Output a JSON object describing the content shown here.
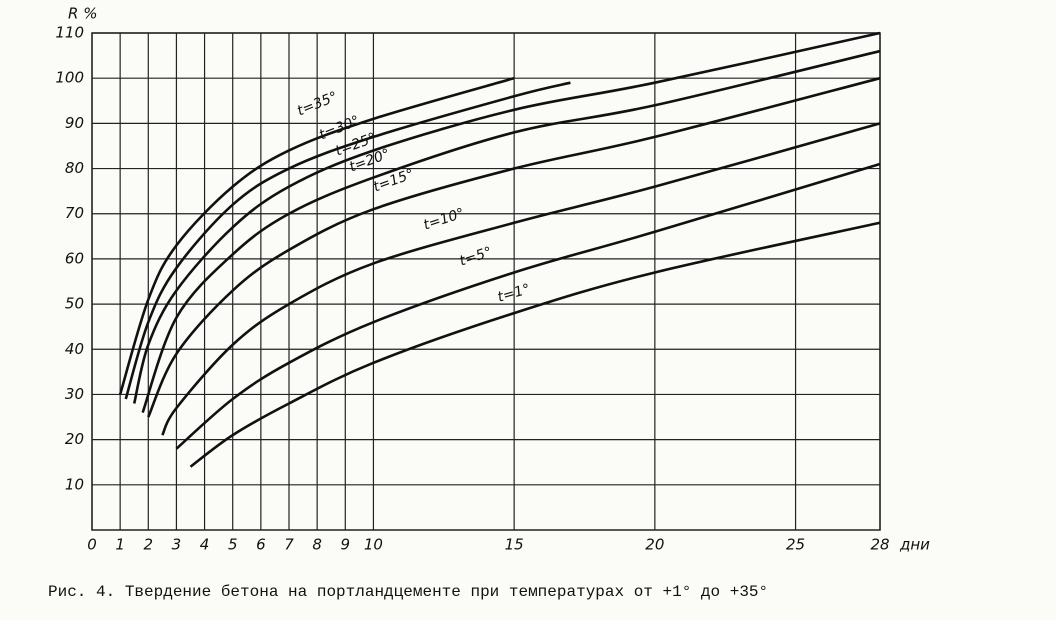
{
  "chart_data": {
    "type": "line",
    "y_label": "R %",
    "x_label": "дни",
    "caption": "Рис. 4. Твердение бетона на портландцементе при температурах от +1° до +35°",
    "xlim": [
      0,
      28
    ],
    "ylim": [
      0,
      110
    ],
    "xticks": [
      0,
      1,
      2,
      3,
      4,
      5,
      6,
      7,
      8,
      9,
      10,
      15,
      20,
      25,
      28
    ],
    "yticks": [
      10,
      20,
      30,
      40,
      50,
      60,
      70,
      80,
      90,
      100,
      110
    ],
    "grid": true,
    "series": [
      {
        "name": "t=35°",
        "color": "#111111",
        "x": [
          1,
          2,
          3,
          5,
          7,
          10,
          15
        ],
        "values": [
          30,
          51,
          63,
          76,
          84,
          91,
          100
        ]
      },
      {
        "name": "t=30°",
        "color": "#111111",
        "x": [
          1.2,
          2,
          3,
          5,
          7,
          10,
          15,
          17
        ],
        "values": [
          29,
          46,
          58,
          72,
          80,
          87,
          96,
          99
        ]
      },
      {
        "name": "t=25°",
        "color": "#111111",
        "x": [
          1.5,
          2,
          3,
          5,
          7,
          10,
          15,
          20,
          28
        ],
        "values": [
          28,
          41,
          53,
          67,
          76,
          84,
          93,
          99,
          110
        ]
      },
      {
        "name": "t=20°",
        "color": "#111111",
        "x": [
          1.8,
          3,
          5,
          7,
          10,
          15,
          20,
          28
        ],
        "values": [
          26,
          47,
          61,
          70,
          78,
          88,
          94,
          106
        ]
      },
      {
        "name": "t=15°",
        "color": "#111111",
        "x": [
          2,
          3,
          5,
          7,
          10,
          15,
          20,
          28
        ],
        "values": [
          25,
          39,
          53,
          62,
          71,
          80,
          87,
          100
        ]
      },
      {
        "name": "t=10°",
        "color": "#111111",
        "x": [
          2.5,
          3,
          5,
          7,
          10,
          15,
          20,
          28
        ],
        "values": [
          21,
          27,
          41,
          50,
          59,
          68,
          76,
          90
        ]
      },
      {
        "name": "t=5°",
        "color": "#111111",
        "x": [
          3,
          5,
          7,
          10,
          15,
          20,
          28
        ],
        "values": [
          18,
          29,
          37,
          46,
          57,
          66,
          81
        ]
      },
      {
        "name": "t=1°",
        "color": "#111111",
        "x": [
          3.5,
          5,
          7,
          10,
          15,
          20,
          28
        ],
        "values": [
          14,
          21,
          28,
          37,
          48,
          57,
          68
        ]
      }
    ]
  }
}
